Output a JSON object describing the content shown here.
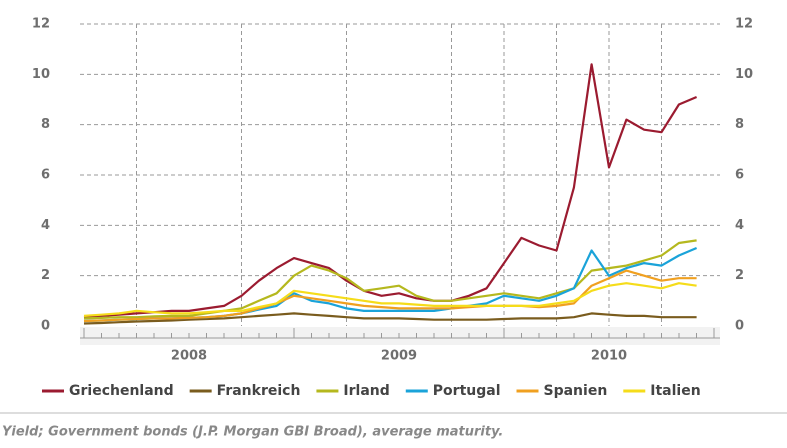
{
  "chart_data": {
    "type": "line",
    "x": [
      2008,
      2008.083,
      2008.167,
      2008.25,
      2008.333,
      2008.417,
      2008.5,
      2008.583,
      2008.667,
      2008.75,
      2008.833,
      2008.917,
      2009,
      2009.083,
      2009.167,
      2009.25,
      2009.333,
      2009.417,
      2009.5,
      2009.583,
      2009.667,
      2009.75,
      2009.833,
      2009.917,
      2010,
      2010.083,
      2010.167,
      2010.25,
      2010.333,
      2010.417,
      2010.5,
      2010.583,
      2010.667,
      2010.75,
      2010.833,
      2010.917
    ],
    "xlim": [
      2008,
      2011
    ],
    "xticks": [
      {
        "value": 2008.5,
        "label": "2008"
      },
      {
        "value": 2009.5,
        "label": "2009"
      },
      {
        "value": 2010.5,
        "label": "2010"
      }
    ],
    "xgrid": [
      2008.25,
      2008.75,
      2009.25,
      2009.75,
      2010,
      2010.25,
      2010.5,
      2010.75
    ],
    "ylim": [
      0,
      12
    ],
    "yticks": [
      0,
      2,
      4,
      6,
      8,
      10,
      12
    ],
    "y2lim": [
      0,
      12
    ],
    "y2ticks": [
      0,
      2,
      4,
      6,
      8,
      10,
      12
    ],
    "grid": true,
    "legend": "bottom",
    "series": [
      {
        "name": "Griechenland",
        "color": "#9b1b30",
        "values": [
          0.35,
          0.4,
          0.45,
          0.5,
          0.55,
          0.6,
          0.6,
          0.7,
          0.8,
          1.2,
          1.8,
          2.3,
          2.7,
          2.5,
          2.3,
          1.8,
          1.4,
          1.2,
          1.3,
          1.1,
          1.0,
          1.0,
          1.2,
          1.5,
          2.5,
          3.5,
          3.2,
          3.0,
          5.5,
          10.4,
          6.3,
          8.2,
          7.8,
          7.7,
          8.8,
          9.1
        ]
      },
      {
        "name": "Frankreich",
        "color": "#7a5c1e",
        "values": [
          0.1,
          0.12,
          0.15,
          0.18,
          0.2,
          0.22,
          0.25,
          0.28,
          0.3,
          0.35,
          0.4,
          0.45,
          0.5,
          0.45,
          0.4,
          0.35,
          0.3,
          0.3,
          0.3,
          0.28,
          0.25,
          0.25,
          0.25,
          0.25,
          0.28,
          0.3,
          0.3,
          0.3,
          0.35,
          0.5,
          0.45,
          0.4,
          0.4,
          0.35,
          0.35,
          0.35
        ]
      },
      {
        "name": "Irland",
        "color": "#b5b81e",
        "values": [
          0.3,
          0.32,
          0.35,
          0.35,
          0.38,
          0.4,
          0.4,
          0.5,
          0.6,
          0.7,
          1.0,
          1.3,
          2.0,
          2.4,
          2.2,
          1.9,
          1.4,
          1.5,
          1.6,
          1.2,
          1.0,
          1.0,
          1.1,
          1.2,
          1.3,
          1.2,
          1.1,
          1.3,
          1.5,
          2.2,
          2.3,
          2.4,
          2.6,
          2.8,
          3.3,
          3.4
        ]
      },
      {
        "name": "Portugal",
        "color": "#1aa3d9",
        "values": [
          0.2,
          0.22,
          0.25,
          0.28,
          0.3,
          0.3,
          0.32,
          0.35,
          0.4,
          0.5,
          0.65,
          0.8,
          1.3,
          1.0,
          0.9,
          0.7,
          0.6,
          0.6,
          0.6,
          0.6,
          0.6,
          0.7,
          0.8,
          0.9,
          1.2,
          1.1,
          1.0,
          1.2,
          1.5,
          3.0,
          2.0,
          2.3,
          2.5,
          2.4,
          2.8,
          3.1
        ]
      },
      {
        "name": "Spanien",
        "color": "#f0a020",
        "values": [
          0.2,
          0.22,
          0.25,
          0.28,
          0.3,
          0.3,
          0.32,
          0.35,
          0.4,
          0.5,
          0.7,
          0.9,
          1.2,
          1.1,
          1.0,
          0.9,
          0.8,
          0.75,
          0.7,
          0.7,
          0.7,
          0.7,
          0.75,
          0.8,
          0.8,
          0.8,
          0.75,
          0.8,
          0.9,
          1.6,
          1.9,
          2.2,
          2.0,
          1.8,
          1.9,
          1.9
        ]
      },
      {
        "name": "Italien",
        "color": "#f5dc1a",
        "values": [
          0.4,
          0.45,
          0.5,
          0.6,
          0.55,
          0.5,
          0.5,
          0.55,
          0.6,
          0.6,
          0.75,
          0.9,
          1.4,
          1.3,
          1.2,
          1.1,
          1.0,
          0.9,
          0.9,
          0.85,
          0.8,
          0.8,
          0.8,
          0.8,
          0.8,
          0.8,
          0.8,
          0.9,
          1.0,
          1.4,
          1.6,
          1.7,
          1.6,
          1.5,
          1.7,
          1.6
        ]
      }
    ],
    "caption": "Yield; Government bonds (J.P. Morgan GBI Broad), average maturity."
  }
}
